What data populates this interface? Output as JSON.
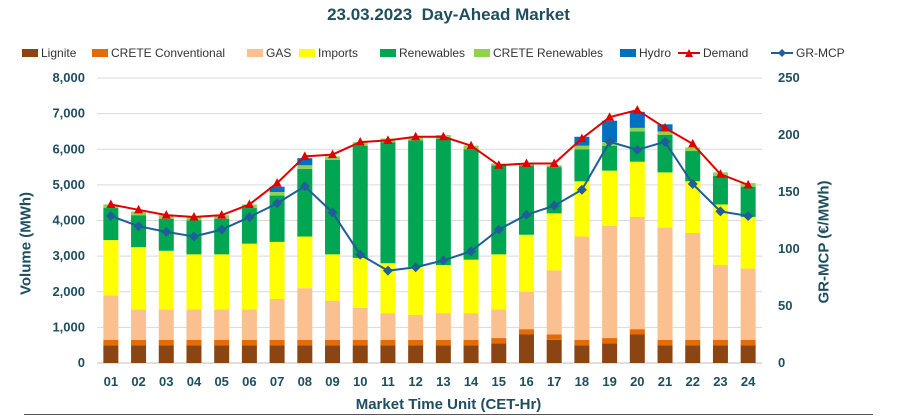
{
  "title": "23.03.2023  Day-Ahead Market",
  "chart_data": {
    "type": "bar",
    "stacked": true,
    "title": "23.03.2023  Day-Ahead Market",
    "xlabel": "Market Time Unit (CET-Hr)",
    "ylabel": "Volume (MWh)",
    "y2label": "GR-MCP (€/MWh)",
    "ylim": [
      0,
      8000
    ],
    "y2lim": [
      0,
      250
    ],
    "yticks": [
      "0",
      "1,000",
      "2,000",
      "3,000",
      "4,000",
      "5,000",
      "6,000",
      "7,000",
      "8,000"
    ],
    "y2ticks": [
      "0",
      "50",
      "100",
      "150",
      "200",
      "250"
    ],
    "grid": true,
    "legend_position": "top",
    "categories": [
      "01",
      "02",
      "03",
      "04",
      "05",
      "06",
      "07",
      "08",
      "09",
      "10",
      "11",
      "12",
      "13",
      "14",
      "15",
      "16",
      "17",
      "18",
      "19",
      "20",
      "21",
      "22",
      "23",
      "24"
    ],
    "series": [
      {
        "name": "Lignite",
        "color": "#8b4513",
        "values": [
          500,
          500,
          500,
          500,
          500,
          500,
          500,
          500,
          500,
          500,
          500,
          500,
          500,
          500,
          550,
          800,
          650,
          500,
          550,
          800,
          500,
          500,
          500,
          500
        ]
      },
      {
        "name": "CRETE Conventional",
        "color": "#e36c09",
        "values": [
          150,
          150,
          150,
          150,
          150,
          150,
          150,
          150,
          150,
          150,
          150,
          150,
          150,
          150,
          150,
          150,
          150,
          150,
          150,
          150,
          150,
          150,
          150,
          150
        ]
      },
      {
        "name": "GAS",
        "color": "#fac090",
        "values": [
          1250,
          850,
          850,
          850,
          850,
          850,
          1150,
          1450,
          1100,
          900,
          750,
          700,
          750,
          750,
          800,
          1050,
          1800,
          2900,
          3150,
          3150,
          3150,
          3000,
          2100,
          2000
        ]
      },
      {
        "name": "Imports",
        "color": "#ffff00",
        "values": [
          1550,
          1750,
          1650,
          1550,
          1550,
          1850,
          1600,
          1450,
          1300,
          1400,
          1400,
          1350,
          1350,
          1500,
          1550,
          1600,
          1600,
          1550,
          1550,
          1550,
          1550,
          1450,
          1700,
          1450
        ]
      },
      {
        "name": "Renewables",
        "color": "#00a651",
        "values": [
          900,
          900,
          900,
          950,
          1000,
          1000,
          1300,
          1900,
          2650,
          3150,
          3400,
          3550,
          3550,
          3100,
          2500,
          1950,
          1300,
          900,
          700,
          850,
          1050,
          850,
          800,
          850
        ]
      },
      {
        "name": "CRETE Renewables",
        "color": "#92d050",
        "values": [
          100,
          100,
          100,
          100,
          100,
          100,
          100,
          100,
          100,
          100,
          100,
          100,
          100,
          100,
          50,
          50,
          50,
          100,
          100,
          100,
          100,
          100,
          100,
          100
        ]
      },
      {
        "name": "Hydro",
        "color": "#0070c0",
        "values": [
          0,
          0,
          0,
          0,
          0,
          0,
          150,
          200,
          0,
          0,
          0,
          0,
          0,
          0,
          0,
          0,
          0,
          250,
          600,
          450,
          200,
          0,
          0,
          0
        ]
      }
    ],
    "lines": [
      {
        "name": "Demand",
        "axis": "left",
        "color": "#e00000",
        "marker": "triangle",
        "values": [
          4450,
          4300,
          4150,
          4100,
          4150,
          4450,
          5050,
          5800,
          5850,
          6200,
          6250,
          6350,
          6350,
          6100,
          5550,
          5600,
          5600,
          6300,
          6900,
          7100,
          6600,
          6150,
          5300,
          5000
        ]
      },
      {
        "name": "GR-MCP",
        "axis": "right",
        "color": "#1f5f99",
        "marker": "diamond",
        "values": [
          129,
          120,
          115,
          111,
          117,
          128,
          140,
          155,
          132,
          95,
          81,
          84,
          90,
          98,
          117,
          130,
          138,
          152,
          194,
          187,
          194,
          157,
          133,
          129
        ]
      }
    ]
  }
}
